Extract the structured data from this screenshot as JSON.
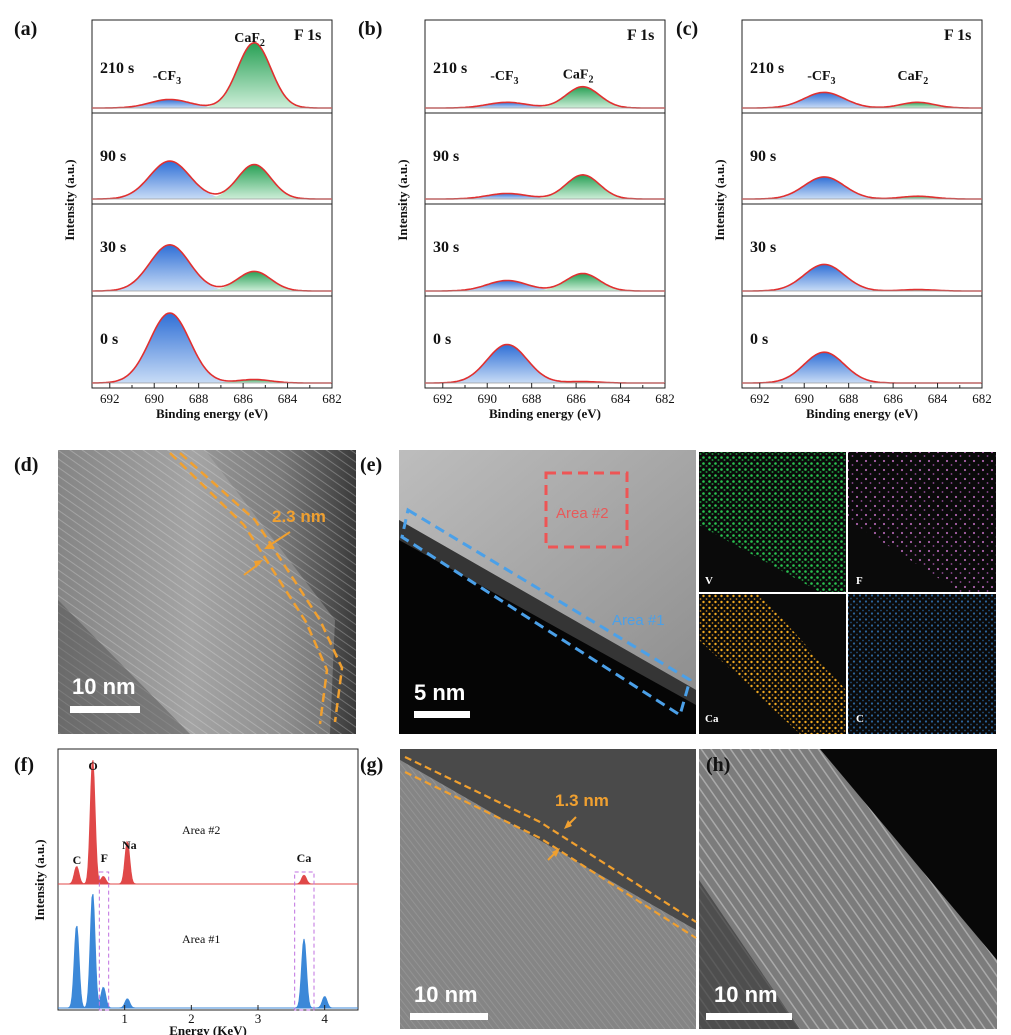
{
  "xps": {
    "xlabel": "Binding energy (eV)",
    "ylabel": "Intensity (a.u.)",
    "title": "F 1s",
    "xticks": [
      "692",
      "690",
      "688",
      "686",
      "684",
      "682"
    ],
    "panels": [
      {
        "label": "(a)",
        "title": "F 1s",
        "rows": [
          {
            "time": "210 s",
            "cf3_label": "-CF3",
            "caf2_label": "CaF2"
          },
          {
            "time": "90 s"
          },
          {
            "time": "30 s"
          },
          {
            "time": "0 s"
          }
        ]
      },
      {
        "label": "(b)",
        "title": "F 1s",
        "rows": [
          {
            "time": "210 s",
            "cf3_label": "-CF3",
            "caf2_label": "CaF2"
          },
          {
            "time": "90 s"
          },
          {
            "time": "30 s"
          },
          {
            "time": "0 s"
          }
        ]
      },
      {
        "label": "(c)",
        "title": "F 1s",
        "rows": [
          {
            "time": "210 s",
            "cf3_label": "-CF3",
            "caf2_label": "CaF2"
          },
          {
            "time": "90 s"
          },
          {
            "time": "30 s"
          },
          {
            "time": "0 s"
          }
        ]
      }
    ]
  },
  "chart_data": [
    {
      "type": "area",
      "title": "F 1s",
      "panel": "(a)",
      "xlabel": "Binding energy (eV)",
      "ylabel": "Intensity (a.u.)",
      "xlim": [
        692.8,
        682
      ],
      "peak_centers_eV": {
        "-CF3": 689.3,
        "CaF2": 685.5
      },
      "series": [
        {
          "name": "210 s",
          "cf3": 0.12,
          "caf2": 0.92
        },
        {
          "name": "90 s",
          "cf3": 0.55,
          "caf2": 0.5
        },
        {
          "name": "30 s",
          "cf3": 0.66,
          "caf2": 0.28
        },
        {
          "name": "0 s",
          "cf3": 1.0,
          "caf2": 0.05
        }
      ]
    },
    {
      "type": "area",
      "title": "F 1s",
      "panel": "(b)",
      "xlabel": "Binding energy (eV)",
      "ylabel": "Intensity (a.u.)",
      "xlim": [
        692.8,
        682
      ],
      "peak_centers_eV": {
        "-CF3": 689.1,
        "CaF2": 685.7
      },
      "series": [
        {
          "name": "210 s",
          "cf3": 0.08,
          "caf2": 0.3
        },
        {
          "name": "90 s",
          "cf3": 0.08,
          "caf2": 0.35
        },
        {
          "name": "30 s",
          "cf3": 0.15,
          "caf2": 0.25
        },
        {
          "name": "0 s",
          "cf3": 0.55,
          "caf2": 0.02
        }
      ]
    },
    {
      "type": "area",
      "title": "F 1s",
      "panel": "(c)",
      "xlabel": "Binding energy (eV)",
      "ylabel": "Intensity (a.u.)",
      "xlim": [
        692.8,
        682
      ],
      "peak_centers_eV": {
        "-CF3": 689.1,
        "CaF2": 684.9
      },
      "series": [
        {
          "name": "210 s",
          "cf3": 0.22,
          "caf2": 0.08
        },
        {
          "name": "90 s",
          "cf3": 0.32,
          "caf2": 0.04
        },
        {
          "name": "30 s",
          "cf3": 0.38,
          "caf2": 0.02
        },
        {
          "name": "0 s",
          "cf3": 0.44,
          "caf2": 0.0
        }
      ]
    },
    {
      "type": "area",
      "title": "",
      "panel": "(f)",
      "xlabel": "Energy (KeV)",
      "ylabel": "Intensity (a.u.)",
      "xlim": [
        0,
        4.5
      ],
      "xticks": [
        "1",
        "2",
        "3",
        "4"
      ],
      "peak_labels": [
        "O",
        "C",
        "F",
        "Na",
        "Ca"
      ],
      "series": [
        {
          "name": "Area #2",
          "peaks": [
            {
              "element": "C",
              "x": 0.28,
              "h": 0.14
            },
            {
              "element": "O",
              "x": 0.52,
              "h": 1.0
            },
            {
              "element": "F",
              "x": 0.68,
              "h": 0.06
            },
            {
              "element": "Na",
              "x": 1.04,
              "h": 0.34
            },
            {
              "element": "Ca",
              "x": 3.69,
              "h": 0.07
            }
          ]
        },
        {
          "name": "Area #1",
          "peaks": [
            {
              "element": "C",
              "x": 0.28,
              "h": 0.72
            },
            {
              "element": "O",
              "x": 0.52,
              "h": 1.0
            },
            {
              "element": "F",
              "x": 0.68,
              "h": 0.18
            },
            {
              "element": "Na",
              "x": 1.04,
              "h": 0.08
            },
            {
              "element": "Ca",
              "x": 3.69,
              "h": 0.6
            },
            {
              "element": "Ca",
              "x": 4.0,
              "h": 0.1
            }
          ]
        }
      ]
    }
  ],
  "tem": {
    "d": {
      "label": "(d)",
      "scale": "10 nm",
      "thickness": "2.3 nm"
    },
    "e": {
      "label": "(e)",
      "scale": "5 nm",
      "area2": "Area #2",
      "area1": "Area #1",
      "maps": [
        {
          "element": "V",
          "color": "#22b84a"
        },
        {
          "element": "F",
          "color": "#d070d0"
        },
        {
          "element": "Ca",
          "color": "#e6a020"
        },
        {
          "element": "C",
          "color": "#3a8ad0"
        }
      ]
    },
    "f": {
      "label": "(f)",
      "xlabel": "Energy (KeV)",
      "ylabel": "Intensity (a.u.)",
      "area2": "Area #2",
      "area1": "Area #1",
      "O": "O",
      "C": "C",
      "F": "F",
      "Na": "Na",
      "Ca": "Ca",
      "xticks": [
        "1",
        "2",
        "3",
        "4"
      ]
    },
    "g": {
      "label": "(g)",
      "scale": "10 nm",
      "thickness": "1.3 nm"
    },
    "h": {
      "label": "(h)",
      "scale": "10 nm"
    }
  },
  "colors": {
    "cf3_fill": "#3a7fd8",
    "caf2_fill": "#2fa860",
    "envelope": "#e03030",
    "eds_area2": "#e04848",
    "eds_area1": "#3c88d8",
    "orange": "#f0a030",
    "dash_red": "#ee5555",
    "dash_blue": "#4ba0e8"
  }
}
